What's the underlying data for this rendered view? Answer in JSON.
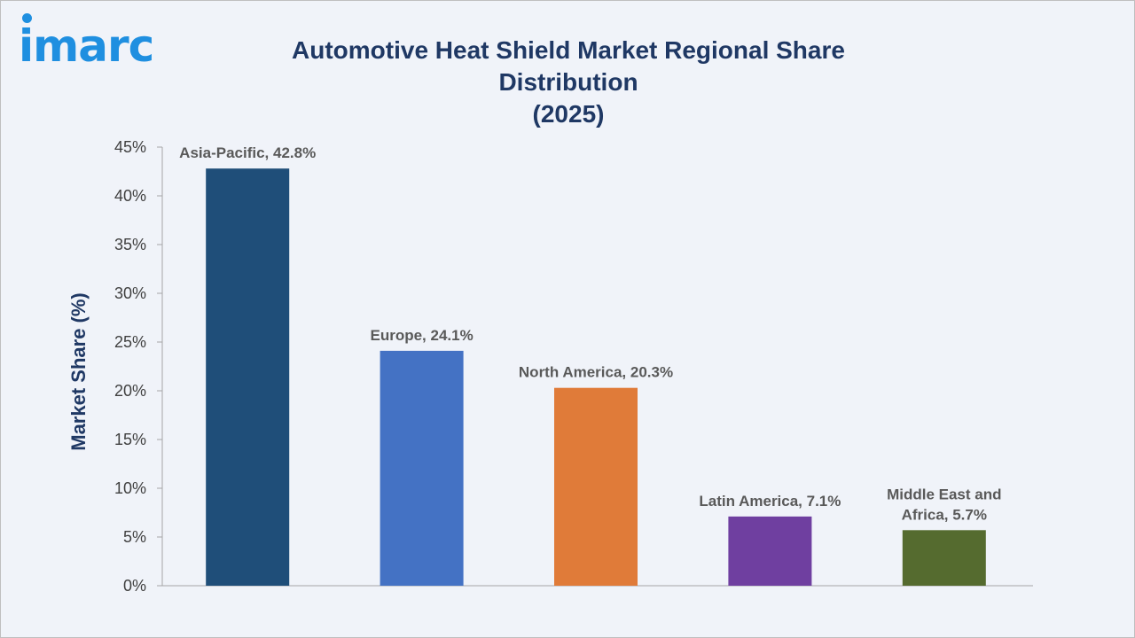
{
  "logo": {
    "text": "imarc",
    "color": "#1f8fe0"
  },
  "chart_data": {
    "type": "bar",
    "title_lines": [
      "Automotive Heat Shield Market Regional Share Distribution",
      "(2025)"
    ],
    "ylabel": "Market Share (%)",
    "xlabel": "",
    "ylim": [
      0,
      45
    ],
    "yticks": [
      "0%",
      "5%",
      "10%",
      "15%",
      "20%",
      "25%",
      "30%",
      "35%",
      "40%",
      "45%"
    ],
    "grid": false,
    "categories": [
      "Asia-Pacific",
      "Europe",
      "North America",
      "Latin America",
      "Middle East and Africa"
    ],
    "values": [
      42.8,
      24.1,
      20.3,
      7.1,
      5.7
    ],
    "data_labels": [
      [
        "Asia-Pacific, 42.8%"
      ],
      [
        "Europe, 24.1%"
      ],
      [
        "North America, 20.3%"
      ],
      [
        "Latin America, 7.1%"
      ],
      [
        "Middle East and",
        "Africa, 5.7%"
      ]
    ],
    "colors": [
      "#1f4e79",
      "#4472c4",
      "#e07b39",
      "#6f3fa0",
      "#556b2f"
    ]
  }
}
